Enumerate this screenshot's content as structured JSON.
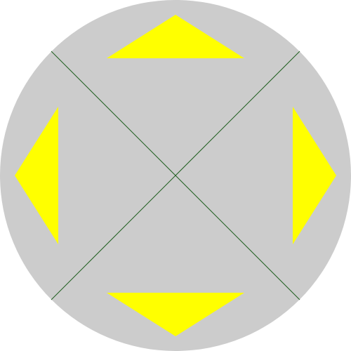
{
  "dpad": {
    "colors": {
      "background": "#cccccc",
      "arrow": "#ffff00",
      "divider": "#1f5f1f"
    },
    "buttons": [
      {
        "direction": "up",
        "icon": "arrow-up-icon"
      },
      {
        "direction": "right",
        "icon": "arrow-right-icon"
      },
      {
        "direction": "down",
        "icon": "arrow-down-icon"
      },
      {
        "direction": "left",
        "icon": "arrow-left-icon"
      }
    ]
  }
}
